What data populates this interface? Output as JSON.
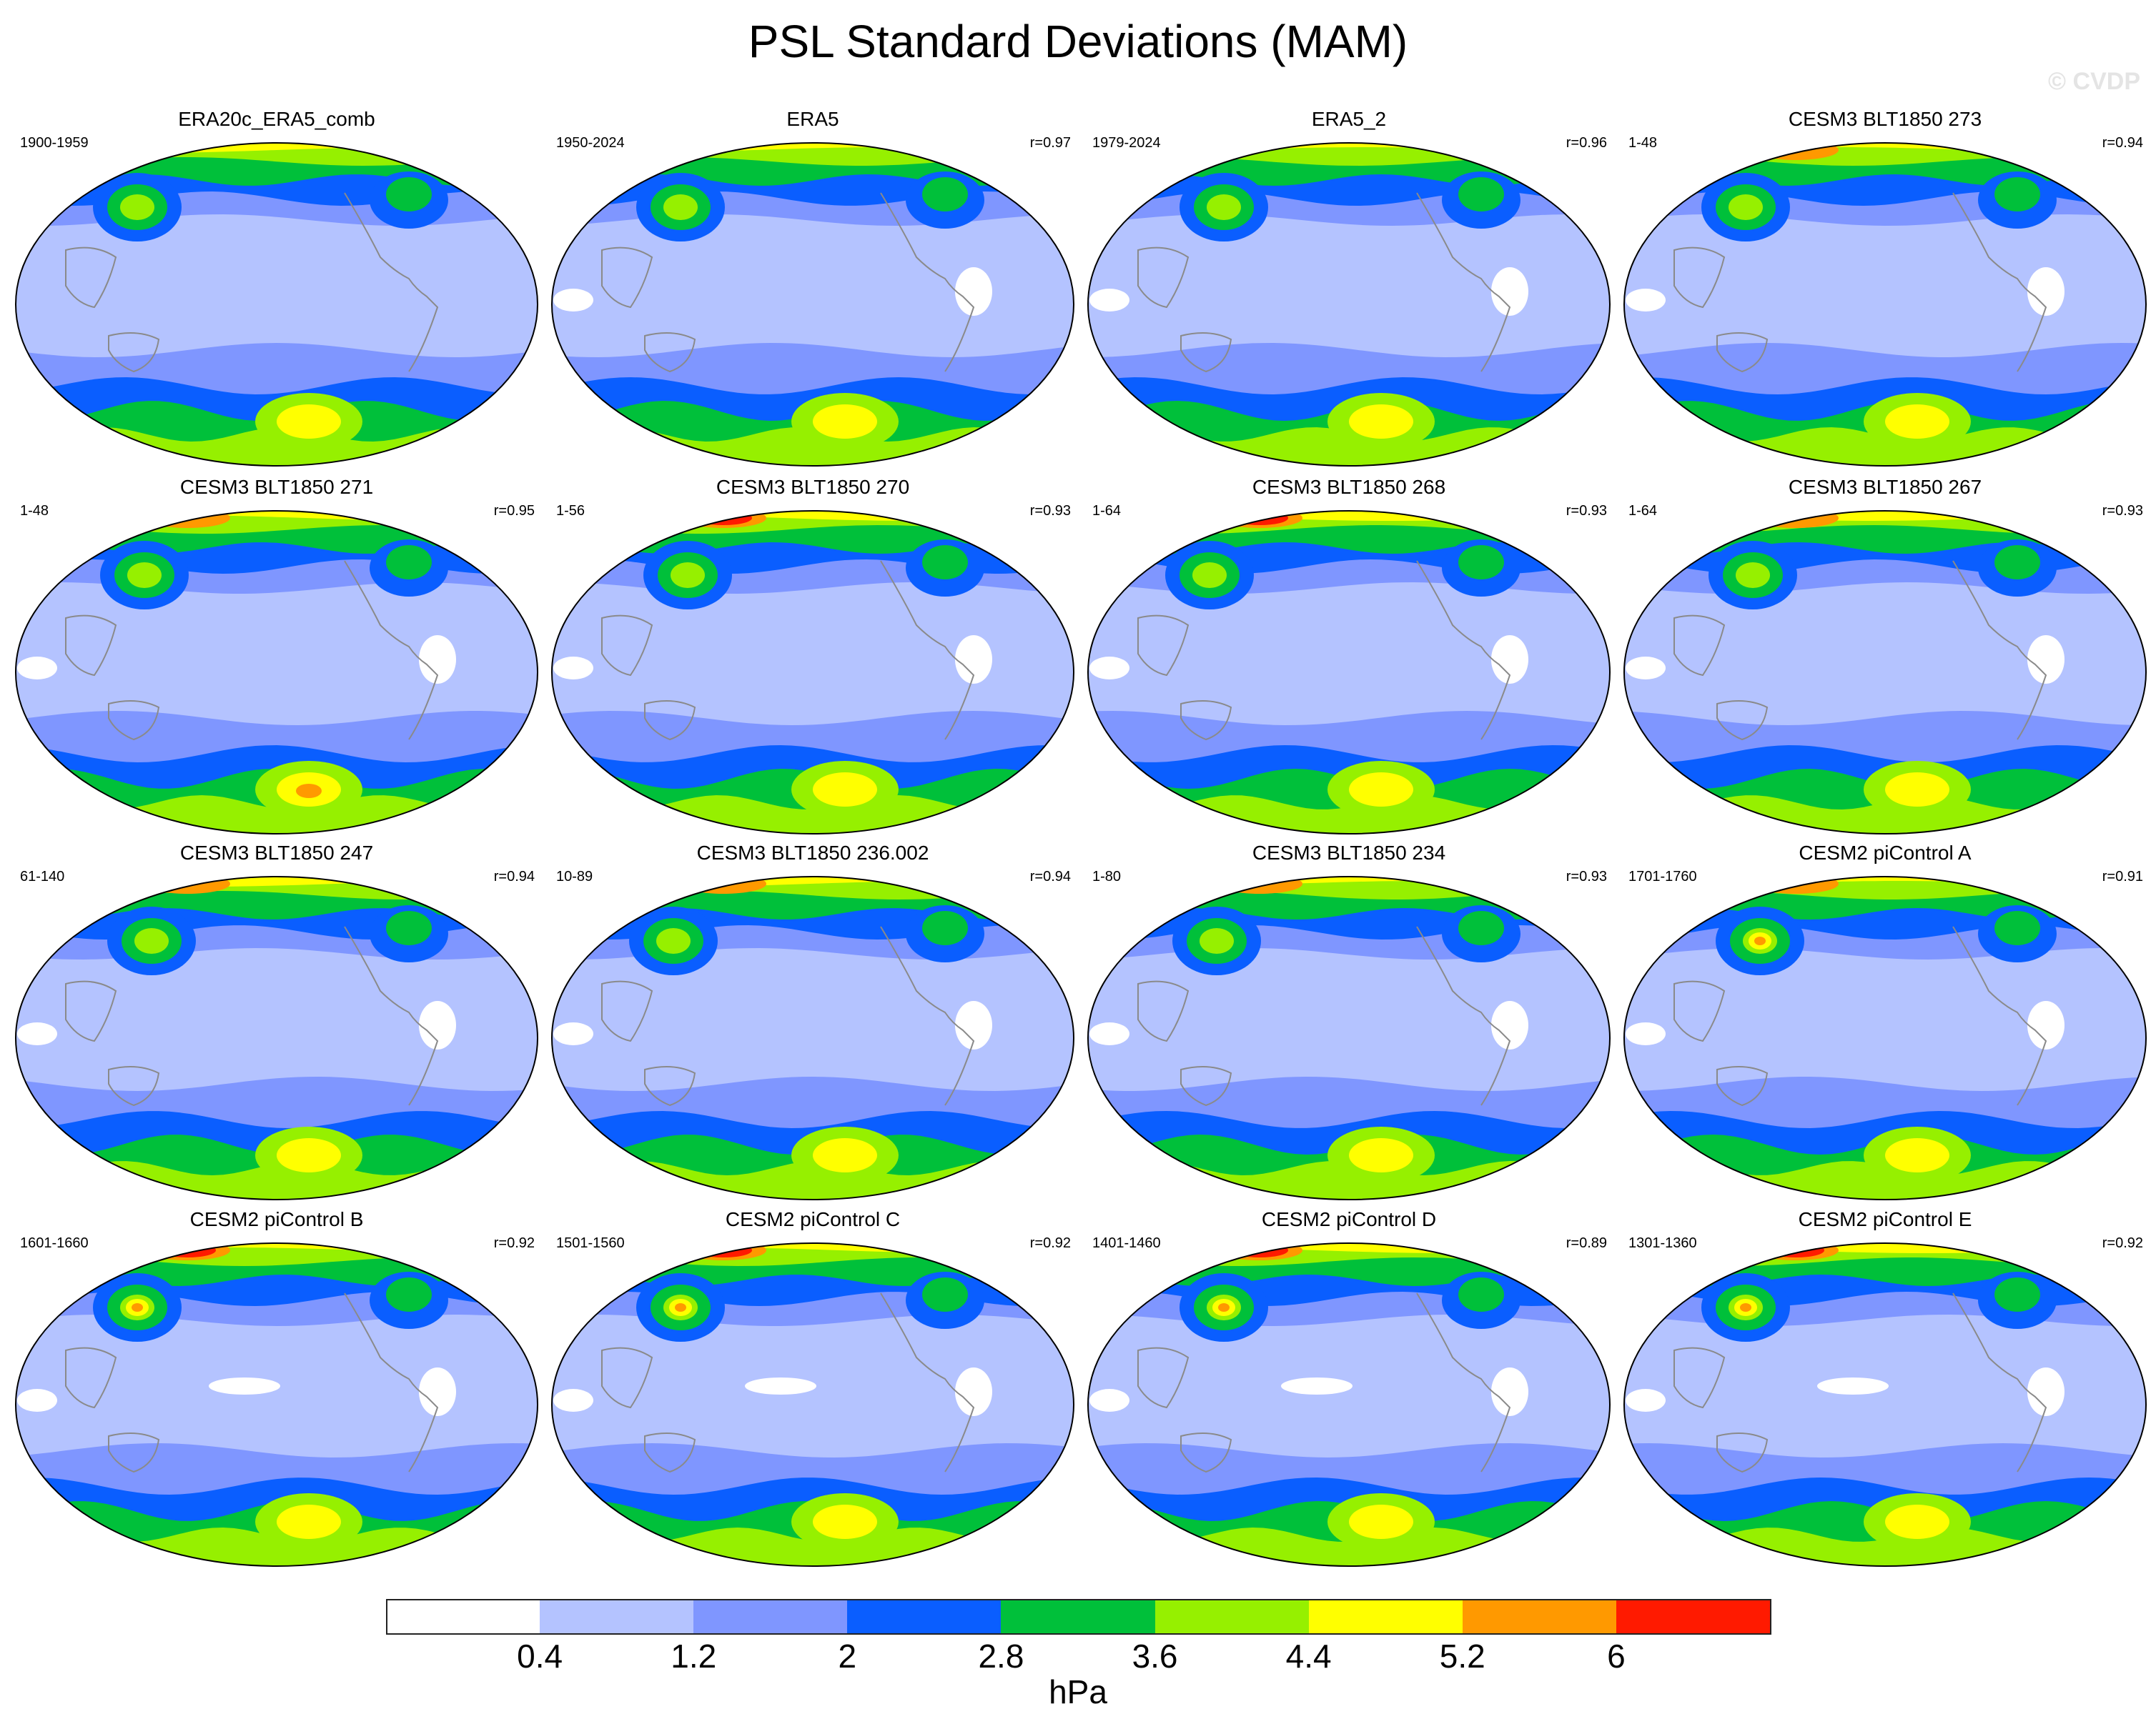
{
  "title": "PSL Standard Deviations (MAM)",
  "watermark": "© CVDP",
  "units": "hPa",
  "colorbar": {
    "colors": [
      "#ffffff",
      "#b4c3ff",
      "#7f96ff",
      "#0a5eff",
      "#00c03a",
      "#96f000",
      "#ffff00",
      "#ff9900",
      "#ff1a00"
    ],
    "tick_labels": [
      "0.4",
      "1.2",
      "2",
      "2.8",
      "3.6",
      "4.4",
      "5.2",
      "6"
    ]
  },
  "panels": [
    {
      "title": "ERA20c_ERA5_comb",
      "period": "1900-1959",
      "corr": ""
    },
    {
      "title": "ERA5",
      "period": "1950-2024",
      "corr": "r=0.97"
    },
    {
      "title": "ERA5_2",
      "period": "1979-2024",
      "corr": "r=0.96"
    },
    {
      "title": "CESM3 BLT1850 273",
      "period": "1-48",
      "corr": "r=0.94"
    },
    {
      "title": "CESM3 BLT1850 271",
      "period": "1-48",
      "corr": "r=0.95"
    },
    {
      "title": "CESM3 BLT1850 270",
      "period": "1-56",
      "corr": "r=0.93"
    },
    {
      "title": "CESM3 BLT1850 268",
      "period": "1-64",
      "corr": "r=0.93"
    },
    {
      "title": "CESM3 BLT1850 267",
      "period": "1-64",
      "corr": "r=0.93"
    },
    {
      "title": "CESM3 BLT1850 247",
      "period": "61-140",
      "corr": "r=0.94"
    },
    {
      "title": "CESM3 BLT1850 236.002",
      "period": "10-89",
      "corr": "r=0.94"
    },
    {
      "title": "CESM3 BLT1850 234",
      "period": "1-80",
      "corr": "r=0.93"
    },
    {
      "title": "CESM2 piControl A",
      "period": "1701-1760",
      "corr": "r=0.91"
    },
    {
      "title": "CESM2 piControl B",
      "period": "1601-1660",
      "corr": "r=0.92"
    },
    {
      "title": "CESM2 piControl C",
      "period": "1501-1560",
      "corr": "r=0.92"
    },
    {
      "title": "CESM2 piControl D",
      "period": "1401-1460",
      "corr": "r=0.89"
    },
    {
      "title": "CESM2 piControl E",
      "period": "1301-1360",
      "corr": "r=0.92"
    }
  ]
}
